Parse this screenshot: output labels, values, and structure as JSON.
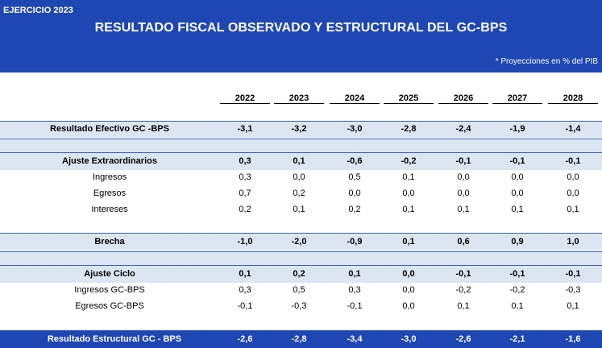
{
  "header": {
    "badge": "EJERCICIO 2023",
    "title": "RESULTADO FISCAL OBSERVADO Y ESTRUCTURAL DEL GC-BPS",
    "note": "* Proyecciones en % del PIB"
  },
  "years": [
    "2022",
    "2023",
    "2024",
    "2025",
    "2026",
    "2027",
    "2028"
  ],
  "rows": [
    {
      "label": "Resultado Efectivo GC -BPS",
      "values": [
        "-3,1",
        "-3,2",
        "-3,0",
        "-2,8",
        "-2,4",
        "-1,9",
        "-1,4"
      ]
    },
    {
      "label": "Ajuste Extraordinarios",
      "values": [
        "0,3",
        "0,1",
        "-0,6",
        "-0,2",
        "-0,1",
        "-0,1",
        "-0,1"
      ]
    },
    {
      "label": "Ingresos",
      "values": [
        "0,3",
        "0,0",
        "0,5",
        "0,1",
        "0,0",
        "0,0",
        "0,0"
      ]
    },
    {
      "label": "Egresos",
      "values": [
        "0,7",
        "0,2",
        "0,0",
        "0,0",
        "0,0",
        "0,0",
        "0,0"
      ]
    },
    {
      "label": "Intereses",
      "values": [
        "0,2",
        "0,1",
        "0,2",
        "0,1",
        "0,1",
        "0,1",
        "0,1"
      ]
    },
    {
      "label": "Brecha",
      "values": [
        "-1,0",
        "-2,0",
        "-0,9",
        "0,1",
        "0,6",
        "0,9",
        "1,0"
      ]
    },
    {
      "label": "Ajuste Ciclo",
      "values": [
        "0,1",
        "0,2",
        "0,1",
        "0,0",
        "-0,1",
        "-0,1",
        "-0,1"
      ]
    },
    {
      "label": "Ingresos GC-BPS",
      "values": [
        "0,3",
        "0,5",
        "0,3",
        "0,0",
        "-0,2",
        "-0,2",
        "-0,3"
      ]
    },
    {
      "label": "Egresos GC-BPS",
      "values": [
        "-0,1",
        "-0,3",
        "-0,1",
        "0,0",
        "0,1",
        "0,1",
        "0,1"
      ]
    },
    {
      "label": "Resultado Estructural GC - BPS",
      "values": [
        "-2,6",
        "-2,8",
        "-3,4",
        "-3,0",
        "-2,6",
        "-2,1",
        "-1,6"
      ]
    }
  ]
}
